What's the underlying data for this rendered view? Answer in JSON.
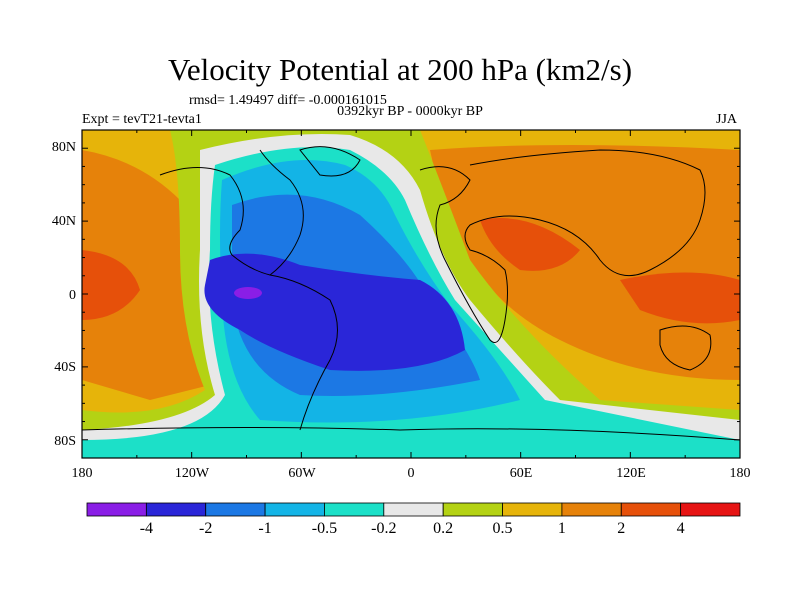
{
  "title": "Velocity Potential at 200 hPa (km2/s)",
  "stats": "rmsd= 1.49497 diff= -0.000161015",
  "time_range": "0392kyr BP - 0000kyr BP",
  "experiment": "Expt = tevT21-tevta1",
  "season": "JJA",
  "map": {
    "projection": "equirectangular",
    "lat_ticks": [
      "80N",
      "40N",
      "0",
      "40S",
      "80S"
    ],
    "lon_ticks": [
      "180",
      "120W",
      "60W",
      "0",
      "60E",
      "120E",
      "180"
    ]
  },
  "colorbar": {
    "labels": [
      "-4",
      "-2",
      "-1",
      "-0.5",
      "-0.2",
      "0.2",
      "0.5",
      "1",
      "2",
      "4"
    ],
    "colors": [
      "#8a1ee6",
      "#2a26d8",
      "#1c78e4",
      "#13b4e6",
      "#1ce0c8",
      "#e8e8e8",
      "#b4d214",
      "#e6b40a",
      "#e6820a",
      "#e6500a",
      "#e61414"
    ]
  }
}
